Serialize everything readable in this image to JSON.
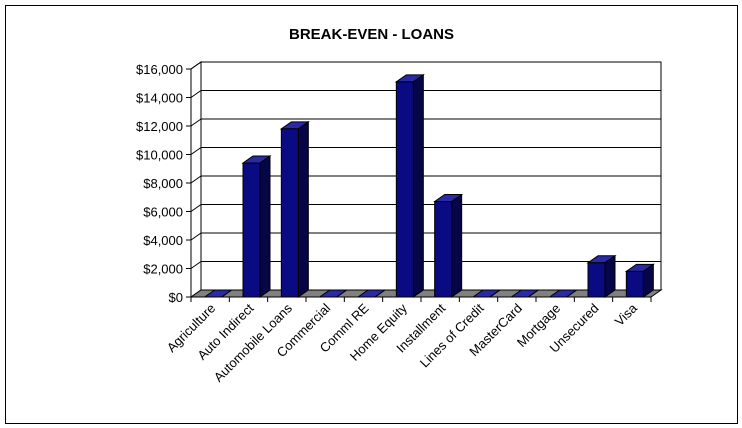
{
  "chart_data": {
    "type": "bar",
    "title": "BREAK-EVEN - LOANS",
    "xlabel": "",
    "ylabel": "",
    "ylim": [
      0,
      16000
    ],
    "yticks": [
      "$0",
      "$2,000",
      "$4,000",
      "$6,000",
      "$8,000",
      "$10,000",
      "$12,000",
      "$14,000",
      "$16,000"
    ],
    "ytick_values": [
      0,
      2000,
      4000,
      6000,
      8000,
      10000,
      12000,
      14000,
      16000
    ],
    "categories": [
      "Agriculture",
      "Auto Indirect",
      "Automobile Loans",
      "Commercial",
      "Comml RE",
      "Home Equity",
      "Installment",
      "Lines of Credit",
      "MasterCard",
      "Mortgage",
      "Unsecured",
      "Visa"
    ],
    "values": [
      0,
      9400,
      11800,
      0,
      0,
      15100,
      6700,
      0,
      0,
      0,
      2400,
      1800
    ],
    "grid": true,
    "bar_color": "#0a0a82",
    "bar_side_color": "#050548",
    "bar_top_color": "#2a2aa8",
    "wall_color": "#ffffff",
    "floor_color": "#808080"
  }
}
